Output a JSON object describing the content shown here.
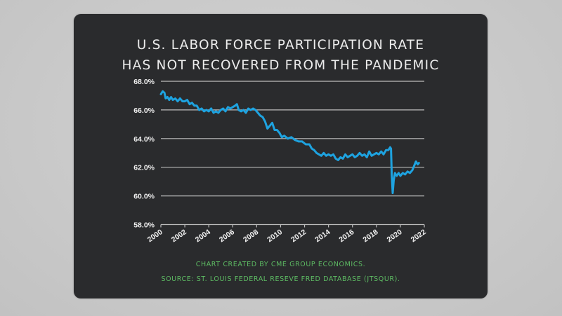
{
  "chart_data": {
    "type": "line",
    "title": "U.S. LABOR FORCE PARTICIPATION RATE HAS NOT RECOVERED FROM THE PANDEMIC",
    "title_lines": [
      "U.S. LABOR FORCE PARTICIPATION RATE",
      "HAS NOT RECOVERED FROM THE PANDEMIC"
    ],
    "xlabel": "",
    "ylabel": "",
    "xlim": [
      2000,
      2022
    ],
    "ylim": [
      58,
      68
    ],
    "x_ticks": [
      "2000",
      "2002",
      "2004",
      "2006",
      "2008",
      "2010",
      "2012",
      "2014",
      "2016",
      "2018",
      "2020",
      "2022"
    ],
    "x_tick_values": [
      2000,
      2002,
      2004,
      2006,
      2008,
      2010,
      2012,
      2014,
      2016,
      2018,
      2020,
      2022
    ],
    "y_ticks": [
      "58.0%",
      "60.0%",
      "62.0%",
      "64.0%",
      "66.0%",
      "68.0%"
    ],
    "y_tick_values": [
      58,
      60,
      62,
      64,
      66,
      68
    ],
    "grid": true,
    "legend": "none",
    "series": [
      {
        "name": "Labor Force Participation Rate",
        "color": "#1ea3e0",
        "points": [
          [
            2000.0,
            67.1
          ],
          [
            2000.15,
            67.3
          ],
          [
            2000.3,
            67.2
          ],
          [
            2000.4,
            66.8
          ],
          [
            2000.55,
            66.9
          ],
          [
            2000.7,
            66.7
          ],
          [
            2000.85,
            66.9
          ],
          [
            2001.0,
            66.7
          ],
          [
            2001.2,
            66.8
          ],
          [
            2001.4,
            66.6
          ],
          [
            2001.6,
            66.8
          ],
          [
            2001.8,
            66.6
          ],
          [
            2002.0,
            66.6
          ],
          [
            2002.2,
            66.7
          ],
          [
            2002.4,
            66.4
          ],
          [
            2002.6,
            66.5
          ],
          [
            2002.8,
            66.3
          ],
          [
            2003.0,
            66.3
          ],
          [
            2003.2,
            66.0
          ],
          [
            2003.4,
            66.1
          ],
          [
            2003.6,
            65.9
          ],
          [
            2003.8,
            66.0
          ],
          [
            2004.0,
            65.9
          ],
          [
            2004.2,
            66.1
          ],
          [
            2004.4,
            65.8
          ],
          [
            2004.6,
            65.9
          ],
          [
            2004.8,
            65.8
          ],
          [
            2005.0,
            66.0
          ],
          [
            2005.2,
            66.1
          ],
          [
            2005.4,
            65.9
          ],
          [
            2005.6,
            66.2
          ],
          [
            2005.8,
            66.1
          ],
          [
            2006.0,
            66.2
          ],
          [
            2006.2,
            66.3
          ],
          [
            2006.35,
            66.4
          ],
          [
            2006.5,
            66.0
          ],
          [
            2006.7,
            65.9
          ],
          [
            2006.9,
            66.0
          ],
          [
            2007.1,
            65.8
          ],
          [
            2007.3,
            66.1
          ],
          [
            2007.5,
            66.0
          ],
          [
            2007.7,
            66.1
          ],
          [
            2007.9,
            66.0
          ],
          [
            2008.1,
            65.8
          ],
          [
            2008.3,
            65.6
          ],
          [
            2008.5,
            65.5
          ],
          [
            2008.7,
            65.2
          ],
          [
            2008.9,
            64.7
          ],
          [
            2009.1,
            64.9
          ],
          [
            2009.3,
            65.1
          ],
          [
            2009.5,
            64.6
          ],
          [
            2009.7,
            64.6
          ],
          [
            2009.9,
            64.4
          ],
          [
            2010.1,
            64.1
          ],
          [
            2010.3,
            64.2
          ],
          [
            2010.6,
            64.0
          ],
          [
            2010.9,
            64.1
          ],
          [
            2011.2,
            63.9
          ],
          [
            2011.5,
            63.8
          ],
          [
            2011.8,
            63.8
          ],
          [
            2012.1,
            63.6
          ],
          [
            2012.4,
            63.6
          ],
          [
            2012.6,
            63.3
          ],
          [
            2012.8,
            63.2
          ],
          [
            2013.0,
            63.0
          ],
          [
            2013.2,
            62.9
          ],
          [
            2013.4,
            62.8
          ],
          [
            2013.6,
            63.0
          ],
          [
            2013.8,
            62.8
          ],
          [
            2014.0,
            62.9
          ],
          [
            2014.2,
            62.8
          ],
          [
            2014.4,
            62.9
          ],
          [
            2014.6,
            62.6
          ],
          [
            2014.8,
            62.5
          ],
          [
            2015.0,
            62.7
          ],
          [
            2015.2,
            62.6
          ],
          [
            2015.4,
            62.9
          ],
          [
            2015.6,
            62.7
          ],
          [
            2015.8,
            62.8
          ],
          [
            2016.0,
            62.9
          ],
          [
            2016.2,
            62.7
          ],
          [
            2016.4,
            62.8
          ],
          [
            2016.6,
            63.0
          ],
          [
            2016.8,
            62.8
          ],
          [
            2017.0,
            62.9
          ],
          [
            2017.2,
            62.7
          ],
          [
            2017.4,
            63.1
          ],
          [
            2017.6,
            62.8
          ],
          [
            2017.8,
            62.9
          ],
          [
            2018.0,
            63.0
          ],
          [
            2018.2,
            62.9
          ],
          [
            2018.4,
            63.1
          ],
          [
            2018.6,
            62.9
          ],
          [
            2018.8,
            63.2
          ],
          [
            2019.0,
            63.2
          ],
          [
            2019.15,
            63.4
          ],
          [
            2019.22,
            63.3
          ],
          [
            2019.28,
            61.5
          ],
          [
            2019.36,
            60.2
          ],
          [
            2019.45,
            61.1
          ],
          [
            2019.55,
            61.6
          ],
          [
            2019.7,
            61.4
          ],
          [
            2019.85,
            61.6
          ],
          [
            2020.0,
            61.4
          ],
          [
            2020.2,
            61.6
          ],
          [
            2020.4,
            61.5
          ],
          [
            2020.6,
            61.7
          ],
          [
            2020.8,
            61.6
          ],
          [
            2021.0,
            61.8
          ],
          [
            2021.15,
            62.1
          ],
          [
            2021.3,
            62.4
          ],
          [
            2021.45,
            62.2
          ],
          [
            2021.55,
            62.3
          ]
        ]
      }
    ],
    "annotations": []
  },
  "footer": {
    "credit": "CHART CREATED BY CME GROUP ECONOMICS.",
    "source": "SOURCE: ST. LOUIS FEDERAL RESEVE FRED DATABASE (JTSQUR)."
  },
  "colors": {
    "card_background": "#2a2b2d",
    "line": "#1ea3e0",
    "gridline": "#bdbdbd",
    "title_text": "#ececec",
    "footer_text": "#5dbb63",
    "tick_text": "#f0f0f0"
  }
}
